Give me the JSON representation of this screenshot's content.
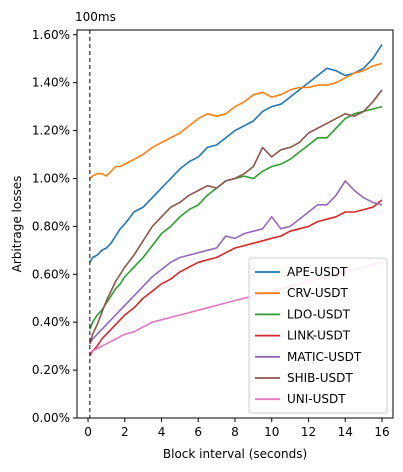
{
  "chart_data": {
    "type": "line",
    "xlabel": "Block interval (seconds)",
    "ylabel": "Arbitrage losses",
    "xlim": [
      -0.6,
      16.6
    ],
    "ylim": [
      0.0,
      1.62
    ],
    "xticks": [
      0,
      2,
      4,
      6,
      8,
      10,
      12,
      14,
      16
    ],
    "xtick_labels": [
      "0",
      "2",
      "4",
      "6",
      "8",
      "10",
      "12",
      "14",
      "16"
    ],
    "yticks": [
      0.0,
      0.2,
      0.4,
      0.6,
      0.8,
      1.0,
      1.2,
      1.4,
      1.6
    ],
    "ytick_labels": [
      "0.00%",
      "0.20%",
      "0.40%",
      "0.60%",
      "0.80%",
      "1.00%",
      "1.20%",
      "1.40%",
      "1.60%"
    ],
    "grid": false,
    "legend_position": "lower-right",
    "annotations": [
      {
        "text": "100ms",
        "x": 0.1,
        "style": "dashed-vertical-line"
      }
    ],
    "x": [
      0.1,
      0.25,
      0.5,
      0.75,
      1.0,
      1.25,
      1.5,
      1.75,
      2.0,
      2.5,
      3.0,
      3.5,
      4.0,
      4.5,
      5.0,
      5.5,
      6.0,
      6.5,
      7.0,
      7.5,
      8.0,
      8.5,
      9.0,
      9.5,
      10.0,
      10.5,
      11.0,
      11.5,
      12.0,
      12.5,
      13.0,
      13.5,
      14.0,
      14.5,
      15.0,
      15.5,
      16.0
    ],
    "series": [
      {
        "name": "APE-USDT",
        "color": "#1f77b4",
        "values": [
          0.65,
          0.67,
          0.68,
          0.7,
          0.71,
          0.73,
          0.76,
          0.79,
          0.81,
          0.86,
          0.88,
          0.92,
          0.96,
          1.0,
          1.04,
          1.07,
          1.09,
          1.13,
          1.14,
          1.17,
          1.2,
          1.22,
          1.24,
          1.28,
          1.3,
          1.31,
          1.34,
          1.37,
          1.4,
          1.43,
          1.46,
          1.45,
          1.43,
          1.44,
          1.46,
          1.5,
          1.56
        ]
      },
      {
        "name": "CRV-USDT",
        "color": "#ff7f0e",
        "values": [
          1.0,
          1.01,
          1.02,
          1.02,
          1.01,
          1.03,
          1.05,
          1.05,
          1.06,
          1.08,
          1.1,
          1.13,
          1.15,
          1.17,
          1.19,
          1.22,
          1.25,
          1.27,
          1.26,
          1.27,
          1.3,
          1.32,
          1.35,
          1.36,
          1.34,
          1.35,
          1.37,
          1.38,
          1.38,
          1.39,
          1.39,
          1.4,
          1.42,
          1.44,
          1.45,
          1.47,
          1.48
        ]
      },
      {
        "name": "LDO-USDT",
        "color": "#2ca02c",
        "values": [
          0.37,
          0.4,
          0.43,
          0.45,
          0.48,
          0.51,
          0.54,
          0.56,
          0.59,
          0.63,
          0.67,
          0.72,
          0.77,
          0.8,
          0.84,
          0.87,
          0.89,
          0.93,
          0.96,
          0.99,
          1.0,
          1.01,
          1.0,
          1.03,
          1.05,
          1.06,
          1.08,
          1.11,
          1.14,
          1.17,
          1.17,
          1.21,
          1.25,
          1.27,
          1.28,
          1.29,
          1.3
        ]
      },
      {
        "name": "LINK-USDT",
        "color": "#d62728",
        "values": [
          0.26,
          0.28,
          0.3,
          0.33,
          0.35,
          0.37,
          0.39,
          0.41,
          0.43,
          0.46,
          0.5,
          0.53,
          0.56,
          0.58,
          0.61,
          0.63,
          0.65,
          0.66,
          0.67,
          0.69,
          0.71,
          0.72,
          0.73,
          0.74,
          0.75,
          0.76,
          0.78,
          0.79,
          0.8,
          0.82,
          0.83,
          0.84,
          0.86,
          0.86,
          0.87,
          0.88,
          0.91
        ]
      },
      {
        "name": "MATIC-USDT",
        "color": "#9467bd",
        "values": [
          0.31,
          0.33,
          0.35,
          0.37,
          0.39,
          0.41,
          0.43,
          0.45,
          0.47,
          0.51,
          0.55,
          0.59,
          0.62,
          0.65,
          0.67,
          0.68,
          0.69,
          0.7,
          0.71,
          0.76,
          0.75,
          0.77,
          0.78,
          0.79,
          0.84,
          0.79,
          0.8,
          0.83,
          0.86,
          0.89,
          0.89,
          0.93,
          0.99,
          0.95,
          0.92,
          0.9,
          0.89
        ]
      },
      {
        "name": "SHIB-USDT",
        "color": "#8c564b",
        "values": [
          0.31,
          0.35,
          0.39,
          0.44,
          0.49,
          0.53,
          0.57,
          0.6,
          0.63,
          0.68,
          0.74,
          0.8,
          0.84,
          0.88,
          0.9,
          0.93,
          0.95,
          0.97,
          0.96,
          0.99,
          1.0,
          1.02,
          1.05,
          1.13,
          1.09,
          1.12,
          1.13,
          1.15,
          1.19,
          1.21,
          1.23,
          1.25,
          1.27,
          1.26,
          1.28,
          1.32,
          1.37
        ]
      },
      {
        "name": "UNI-USDT",
        "color": "#e377c2",
        "values": [
          0.27,
          0.28,
          0.29,
          0.3,
          0.31,
          0.32,
          0.33,
          0.34,
          0.35,
          0.36,
          0.38,
          0.4,
          0.41,
          0.42,
          0.43,
          0.44,
          0.45,
          0.46,
          0.47,
          0.48,
          0.49,
          0.5,
          0.51,
          0.52,
          0.53,
          0.54,
          0.55,
          0.56,
          0.57,
          0.58,
          0.59,
          0.6,
          0.61,
          0.62,
          0.63,
          0.64,
          0.65
        ]
      }
    ]
  }
}
